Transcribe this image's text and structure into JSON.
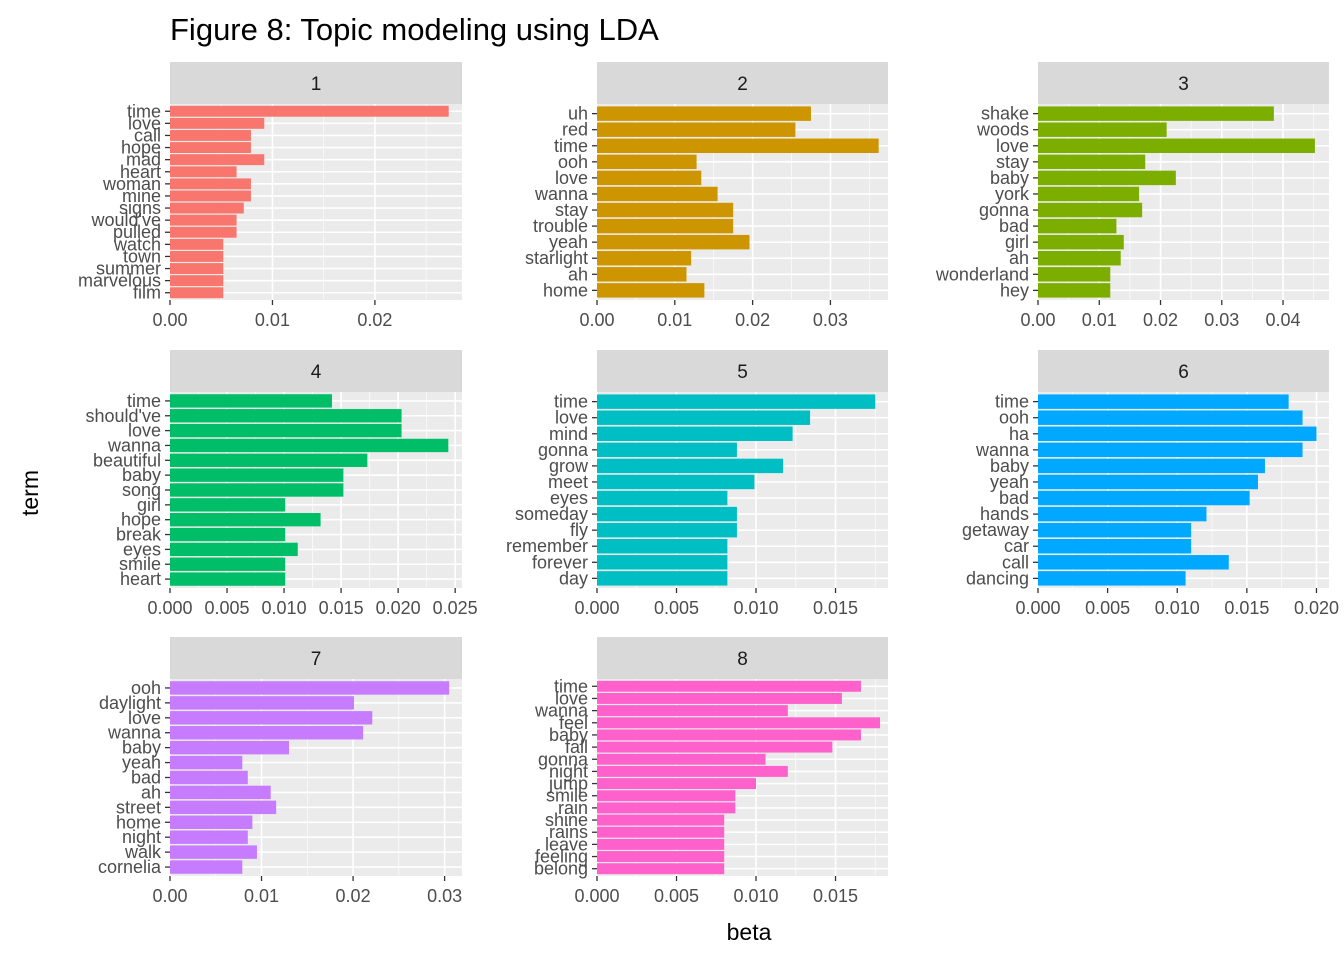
{
  "chart_data": {
    "type": "bar",
    "orientation": "horizontal",
    "layout": "facet-wrap 3 columns",
    "title": "Figure 8: Topic modeling using LDA",
    "xlabel": "beta",
    "ylabel": "term",
    "grid": true,
    "legend": "none",
    "facets": [
      {
        "label": "1",
        "color": "#F8766D",
        "xlim": [
          0,
          0.0285
        ],
        "ticks": [
          0,
          0.01,
          0.02
        ],
        "tick_labels": [
          "0.00",
          "0.01",
          "0.02"
        ],
        "terms": [
          "time",
          "love",
          "call",
          "hope",
          "mad",
          "heart",
          "woman",
          "mine",
          "signs",
          "would've",
          "pulled",
          "watch",
          "town",
          "summer",
          "marvelous",
          "film"
        ],
        "values": [
          0.0272,
          0.0092,
          0.0079,
          0.0079,
          0.0092,
          0.0065,
          0.0079,
          0.0079,
          0.0072,
          0.0065,
          0.0065,
          0.0052,
          0.0052,
          0.0052,
          0.0052,
          0.0052
        ]
      },
      {
        "label": "2",
        "color": "#CD9600",
        "xlim": [
          0,
          0.0374
        ],
        "ticks": [
          0,
          0.01,
          0.02,
          0.03
        ],
        "tick_labels": [
          "0.00",
          "0.01",
          "0.02",
          "0.03"
        ],
        "terms": [
          "uh",
          "red",
          "time",
          "ooh",
          "love",
          "wanna",
          "stay",
          "trouble",
          "yeah",
          "starlight",
          "ah",
          "home"
        ],
        "values": [
          0.0275,
          0.0255,
          0.0362,
          0.0128,
          0.0134,
          0.0155,
          0.0175,
          0.0175,
          0.0196,
          0.0121,
          0.0115,
          0.0138
        ]
      },
      {
        "label": "3",
        "color": "#7CAE00",
        "xlim": [
          0,
          0.0475
        ],
        "ticks": [
          0,
          0.01,
          0.02,
          0.03,
          0.04
        ],
        "tick_labels": [
          "0.00",
          "0.01",
          "0.02",
          "0.03",
          "0.04"
        ],
        "terms": [
          "shake",
          "woods",
          "love",
          "stay",
          "baby",
          "york",
          "gonna",
          "bad",
          "girl",
          "ah",
          "wonderland",
          "hey"
        ],
        "values": [
          0.0385,
          0.021,
          0.0452,
          0.0175,
          0.0225,
          0.0165,
          0.017,
          0.0128,
          0.014,
          0.0135,
          0.0118,
          0.0118
        ]
      },
      {
        "label": "4",
        "color": "#00BE67",
        "xlim": [
          0,
          0.0256
        ],
        "ticks": [
          0,
          0.005,
          0.01,
          0.015,
          0.02,
          0.025
        ],
        "tick_labels": [
          "0.000",
          "0.005",
          "0.010",
          "0.015",
          "0.020",
          "0.025"
        ],
        "terms": [
          "time",
          "should've",
          "love",
          "wanna",
          "beautiful",
          "baby",
          "song",
          "girl",
          "hope",
          "break",
          "eyes",
          "smile",
          "heart"
        ],
        "values": [
          0.0142,
          0.0203,
          0.0203,
          0.0244,
          0.0173,
          0.0152,
          0.0152,
          0.0101,
          0.0132,
          0.0101,
          0.0112,
          0.0101,
          0.0101
        ]
      },
      {
        "label": "5",
        "color": "#00BFC4",
        "xlim": [
          0,
          0.0183
        ],
        "ticks": [
          0,
          0.005,
          0.01,
          0.015
        ],
        "tick_labels": [
          "0.000",
          "0.005",
          "0.010",
          "0.015"
        ],
        "terms": [
          "time",
          "love",
          "mind",
          "gonna",
          "grow",
          "meet",
          "eyes",
          "someday",
          "fly",
          "remember",
          "forever",
          "day"
        ],
        "values": [
          0.0175,
          0.0134,
          0.0123,
          0.0088,
          0.0117,
          0.0099,
          0.0082,
          0.0088,
          0.0088,
          0.0082,
          0.0082,
          0.0082
        ]
      },
      {
        "label": "6",
        "color": "#00A9FF",
        "xlim": [
          0,
          0.0209
        ],
        "ticks": [
          0,
          0.005,
          0.01,
          0.015,
          0.02
        ],
        "tick_labels": [
          "0.000",
          "0.005",
          "0.010",
          "0.015",
          "0.020"
        ],
        "terms": [
          "time",
          "ooh",
          "ha",
          "wanna",
          "baby",
          "yeah",
          "bad",
          "hands",
          "getaway",
          "car",
          "call",
          "dancing"
        ],
        "values": [
          0.018,
          0.019,
          0.02,
          0.019,
          0.0163,
          0.0158,
          0.0152,
          0.0121,
          0.011,
          0.011,
          0.0137,
          0.0106
        ]
      },
      {
        "label": "7",
        "color": "#C77CFF",
        "xlim": [
          0,
          0.0319
        ],
        "ticks": [
          0,
          0.01,
          0.02,
          0.03
        ],
        "tick_labels": [
          "0.00",
          "0.01",
          "0.02",
          "0.03"
        ],
        "terms": [
          "ooh",
          "daylight",
          "love",
          "wanna",
          "baby",
          "yeah",
          "bad",
          "ah",
          "street",
          "home",
          "night",
          "walk",
          "cornelia"
        ],
        "values": [
          0.0305,
          0.0201,
          0.0221,
          0.0211,
          0.013,
          0.0079,
          0.0085,
          0.011,
          0.0116,
          0.009,
          0.0085,
          0.0095,
          0.0079
        ]
      },
      {
        "label": "8",
        "color": "#FF61CC",
        "xlim": [
          0,
          0.0183
        ],
        "ticks": [
          0,
          0.005,
          0.01,
          0.015
        ],
        "tick_labels": [
          "0.000",
          "0.005",
          "0.010",
          "0.015"
        ],
        "terms": [
          "time",
          "love",
          "wanna",
          "feel",
          "baby",
          "fall",
          "gonna",
          "night",
          "jump",
          "smile",
          "rain",
          "shine",
          "rains",
          "leave",
          "feeling",
          "belong"
        ],
        "values": [
          0.0166,
          0.0154,
          0.012,
          0.0178,
          0.0166,
          0.0148,
          0.0106,
          0.012,
          0.01,
          0.0087,
          0.0087,
          0.008,
          0.008,
          0.008,
          0.008,
          0.008
        ]
      }
    ]
  }
}
